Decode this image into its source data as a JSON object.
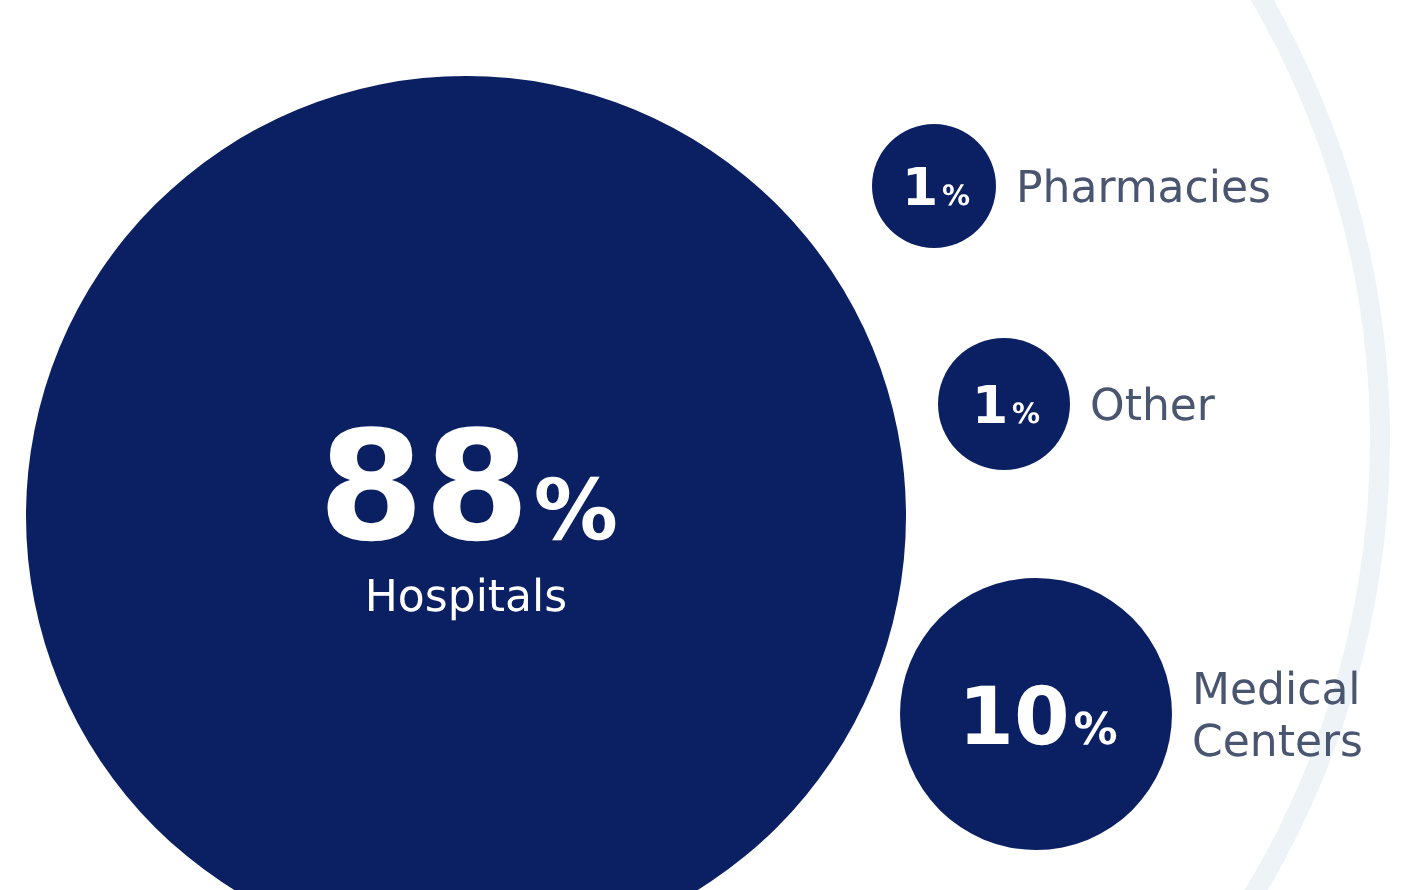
{
  "chart_data": {
    "type": "other",
    "categories": [
      "Hospitals",
      "Pharmacies",
      "Other",
      "Medical Centers"
    ],
    "values": [
      88,
      1,
      1,
      10
    ],
    "value_labels": [
      "88%",
      "1%",
      "1%",
      "10%"
    ],
    "color": "#0b2063"
  }
}
